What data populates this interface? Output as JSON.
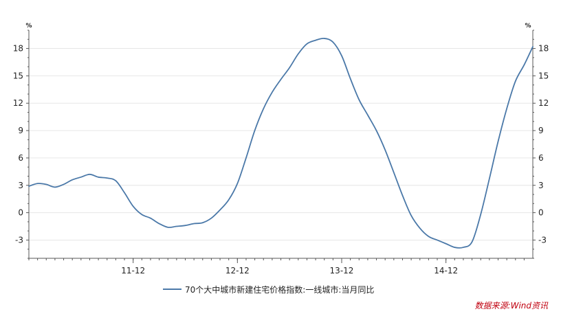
{
  "chart_data": {
    "type": "line",
    "unit_left": "%",
    "unit_right": "%",
    "y_ticks": [
      -3,
      0,
      3,
      6,
      9,
      12,
      15,
      18
    ],
    "ylim": [
      -5,
      20
    ],
    "x_range": [
      2010.917,
      2015.75
    ],
    "x_tick_labels": [
      {
        "label": "11-12",
        "x": 2011.917
      },
      {
        "label": "12-12",
        "x": 2012.917
      },
      {
        "label": "13-12",
        "x": 2013.917
      },
      {
        "label": "14-12",
        "x": 2014.917
      }
    ],
    "series": [
      {
        "name": "70个大中城市新建住宅价格指数:一线城市:当月同比",
        "color": "#4a78a8",
        "values": [
          [
            2010.917,
            2.9
          ],
          [
            2011.0,
            3.2
          ],
          [
            2011.083,
            3.1
          ],
          [
            2011.167,
            2.8
          ],
          [
            2011.25,
            3.1
          ],
          [
            2011.333,
            3.6
          ],
          [
            2011.417,
            3.9
          ],
          [
            2011.5,
            4.2
          ],
          [
            2011.583,
            3.9
          ],
          [
            2011.667,
            3.8
          ],
          [
            2011.75,
            3.5
          ],
          [
            2011.833,
            2.2
          ],
          [
            2011.917,
            0.7
          ],
          [
            2012.0,
            -0.2
          ],
          [
            2012.083,
            -0.6
          ],
          [
            2012.167,
            -1.2
          ],
          [
            2012.25,
            -1.6
          ],
          [
            2012.333,
            -1.5
          ],
          [
            2012.417,
            -1.4
          ],
          [
            2012.5,
            -1.2
          ],
          [
            2012.583,
            -1.1
          ],
          [
            2012.667,
            -0.6
          ],
          [
            2012.75,
            0.3
          ],
          [
            2012.833,
            1.4
          ],
          [
            2012.917,
            3.2
          ],
          [
            2013.0,
            6.0
          ],
          [
            2013.083,
            9.0
          ],
          [
            2013.167,
            11.4
          ],
          [
            2013.25,
            13.2
          ],
          [
            2013.333,
            14.6
          ],
          [
            2013.417,
            15.9
          ],
          [
            2013.5,
            17.4
          ],
          [
            2013.583,
            18.5
          ],
          [
            2013.667,
            18.9
          ],
          [
            2013.75,
            19.1
          ],
          [
            2013.833,
            18.7
          ],
          [
            2013.917,
            17.2
          ],
          [
            2014.0,
            14.7
          ],
          [
            2014.083,
            12.4
          ],
          [
            2014.167,
            10.7
          ],
          [
            2014.25,
            9.0
          ],
          [
            2014.333,
            6.9
          ],
          [
            2014.417,
            4.4
          ],
          [
            2014.5,
            1.9
          ],
          [
            2014.583,
            -0.3
          ],
          [
            2014.667,
            -1.7
          ],
          [
            2014.75,
            -2.6
          ],
          [
            2014.833,
            -3.0
          ],
          [
            2014.917,
            -3.4
          ],
          [
            2015.0,
            -3.8
          ],
          [
            2015.083,
            -3.8
          ],
          [
            2015.167,
            -3.2
          ],
          [
            2015.25,
            -0.2
          ],
          [
            2015.333,
            3.7
          ],
          [
            2015.417,
            7.8
          ],
          [
            2015.5,
            11.4
          ],
          [
            2015.583,
            14.4
          ],
          [
            2015.667,
            16.2
          ],
          [
            2015.75,
            18.2
          ]
        ]
      }
    ],
    "legend_position": "bottom-center",
    "source_note": "数据来源:Wind资讯",
    "source_color": "#c0000f",
    "grid": true
  }
}
